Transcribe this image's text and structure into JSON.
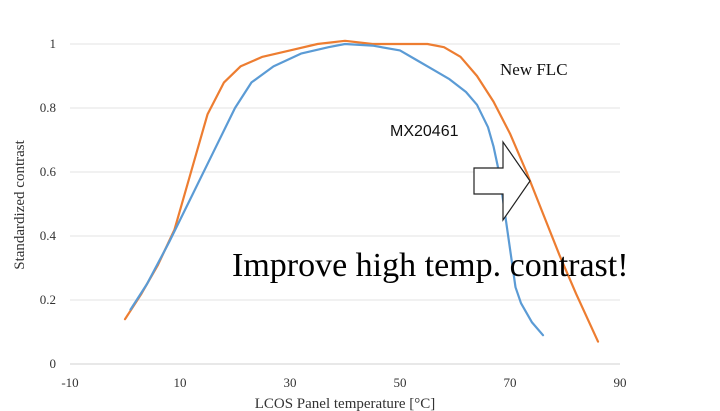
{
  "chart_data": {
    "type": "line",
    "title": "",
    "xlabel": "LCOS Panel temperature [°C]",
    "ylabel": "Standardized contrast",
    "xlim": [
      -10,
      90
    ],
    "ylim": [
      0,
      1
    ],
    "x_ticks": [
      "-10",
      "10",
      "30",
      "50",
      "70",
      "90"
    ],
    "y_ticks": [
      "0",
      "0.2",
      "0.4",
      "0.6",
      "0.8",
      "1"
    ],
    "grid": "horizontal",
    "series": [
      {
        "name": "New FLC",
        "color": "#ED7D31",
        "x": [
          0,
          3,
          6,
          9,
          12,
          15,
          18,
          21,
          25,
          30,
          35,
          40,
          45,
          50,
          55,
          58,
          61,
          64,
          67,
          70,
          73,
          76,
          79,
          82,
          86
        ],
        "y": [
          0.14,
          0.22,
          0.31,
          0.42,
          0.6,
          0.78,
          0.88,
          0.93,
          0.96,
          0.98,
          1.0,
          1.01,
          1.0,
          1.0,
          1.0,
          0.99,
          0.96,
          0.9,
          0.82,
          0.72,
          0.6,
          0.47,
          0.34,
          0.22,
          0.07
        ]
      },
      {
        "name": "MX20461",
        "color": "#5B9BD5",
        "x": [
          1,
          4,
          8,
          12,
          16,
          20,
          23,
          27,
          32,
          37,
          40,
          45,
          50,
          53,
          56,
          59,
          62,
          64,
          66,
          67,
          68,
          69,
          70,
          71,
          72,
          74,
          76
        ],
        "y": [
          0.17,
          0.25,
          0.38,
          0.52,
          0.66,
          0.8,
          0.88,
          0.93,
          0.97,
          0.99,
          1.0,
          0.995,
          0.98,
          0.95,
          0.92,
          0.89,
          0.85,
          0.81,
          0.74,
          0.68,
          0.6,
          0.48,
          0.36,
          0.24,
          0.19,
          0.13,
          0.09
        ]
      }
    ],
    "annotations": [
      {
        "text": "New FLC"
      },
      {
        "text": "MX20461"
      },
      {
        "text": "Improve high temp. contrast!"
      }
    ]
  }
}
